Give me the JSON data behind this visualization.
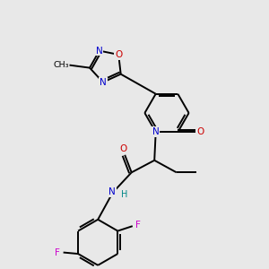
{
  "background_color": "#e8e8e8",
  "bond_color": "#000000",
  "atom_colors": {
    "N": "#0000cc",
    "O": "#cc0000",
    "F": "#cc00cc",
    "H": "#008888",
    "C": "#000000"
  }
}
